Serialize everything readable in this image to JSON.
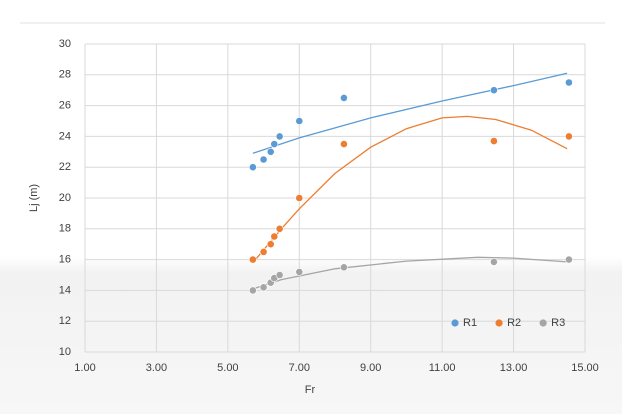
{
  "chart_data": {
    "type": "scatter",
    "x_label": "Fr",
    "y_label": "Lj (m)",
    "xlim": [
      1,
      15
    ],
    "ylim": [
      10,
      30
    ],
    "xticks": [
      {
        "value": 1,
        "label": "1.00"
      },
      {
        "value": 3,
        "label": "3.00"
      },
      {
        "value": 5,
        "label": "5.00"
      },
      {
        "value": 7,
        "label": "7.00"
      },
      {
        "value": 9,
        "label": "9.00"
      },
      {
        "value": 11,
        "label": "11.00"
      },
      {
        "value": 13,
        "label": "13.00"
      },
      {
        "value": 15,
        "label": "15.00"
      }
    ],
    "yticks": [
      10,
      12,
      14,
      16,
      18,
      20,
      22,
      24,
      26,
      28,
      30
    ],
    "grid": true,
    "legend": "bottom-right",
    "series": [
      {
        "name": "R1",
        "color": "#5b9bd5",
        "x": [
          5.7,
          6.0,
          6.2,
          6.3,
          6.45,
          7.0,
          8.25,
          12.45,
          14.55
        ],
        "values": [
          22,
          22.5,
          23,
          23.5,
          24,
          25,
          26.5,
          27,
          27.5
        ],
        "trend_x": [
          5.7,
          7,
          9,
          11,
          13,
          14.5
        ],
        "trend_y": [
          22.9,
          23.9,
          25.2,
          26.3,
          27.3,
          28.1
        ]
      },
      {
        "name": "R2",
        "color": "#ed7d31",
        "x": [
          5.7,
          6.0,
          6.2,
          6.3,
          6.45,
          7.0,
          8.25,
          12.45,
          14.55
        ],
        "values": [
          16,
          16.5,
          17,
          17.5,
          18,
          20,
          23.5,
          23.7,
          24
        ],
        "trend_x": [
          5.7,
          6.5,
          7,
          8,
          9,
          10,
          11,
          11.7,
          12.5,
          13.5,
          14.5
        ],
        "trend_y": [
          15.8,
          18.0,
          19.3,
          21.6,
          23.3,
          24.5,
          25.2,
          25.3,
          25.1,
          24.4,
          23.2
        ]
      },
      {
        "name": "R3",
        "color": "#a5a5a5",
        "x": [
          5.7,
          6.0,
          6.2,
          6.3,
          6.45,
          7.0,
          8.25,
          12.45,
          14.55
        ],
        "values": [
          14,
          14.2,
          14.5,
          14.8,
          15,
          15.2,
          15.5,
          15.85,
          16
        ],
        "trend_x": [
          5.7,
          6.5,
          8,
          10,
          12,
          13,
          14.5
        ],
        "trend_y": [
          14.1,
          14.7,
          15.4,
          15.9,
          16.15,
          16.1,
          15.85
        ]
      }
    ]
  }
}
